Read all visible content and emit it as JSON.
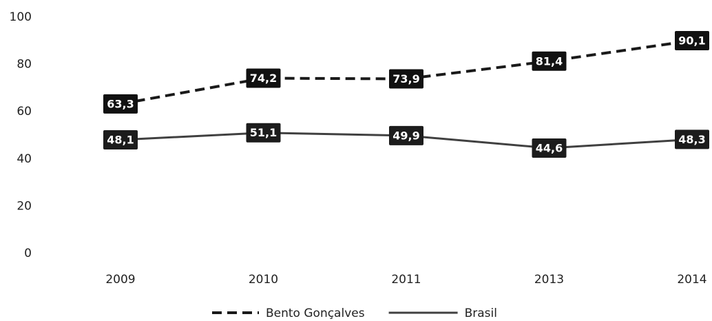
{
  "chart_data": {
    "type": "line",
    "categories": [
      "2009",
      "2010",
      "2011",
      "2013",
      "2014"
    ],
    "series": [
      {
        "name": "Bento Gonçalves",
        "color": "#1a1a1a",
        "style": "dashed",
        "values": [
          63.3,
          74.2,
          73.9,
          81.4,
          90.1
        ],
        "value_labels": [
          "63,3",
          "74,2",
          "73,9",
          "81,4",
          "90,1"
        ]
      },
      {
        "name": "Brasil",
        "color": "#404040",
        "style": "solid",
        "values": [
          48.1,
          51.1,
          49.9,
          44.6,
          48.3
        ],
        "value_labels": [
          "48,1",
          "51,1",
          "49,9",
          "44,6",
          "48,3"
        ]
      }
    ],
    "ylim": [
      0,
      100
    ],
    "yticks": [
      0,
      20,
      40,
      60,
      80,
      100
    ],
    "grid": false,
    "legend": "bottom"
  }
}
